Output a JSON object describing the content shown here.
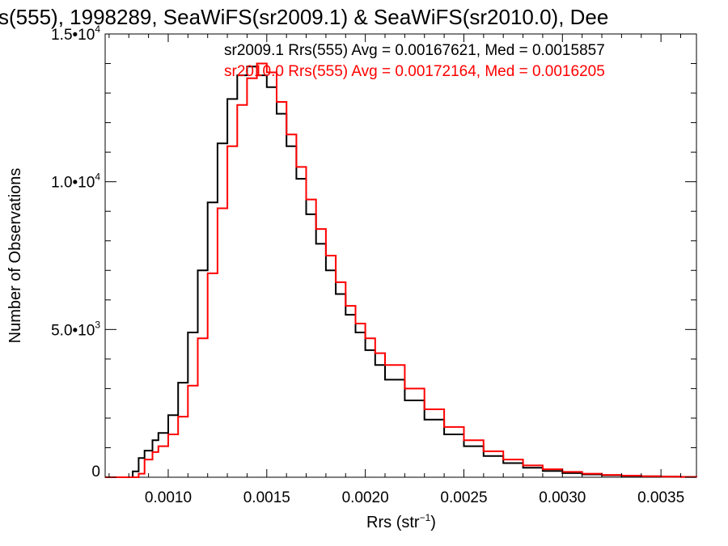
{
  "chart_data": {
    "type": "line",
    "title": "s(555), 1998289, SeaWiFS(sr2009.1) & SeaWiFS(sr2010.0), Dee",
    "xlabel": "Rrs (str",
    "xlabel_sup": "−1",
    "xlabel_close": ")",
    "ylabel": "Number of Observations",
    "xlim": [
      0.00068,
      0.00368
    ],
    "ylim": [
      0,
      15000
    ],
    "x_ticks": [
      {
        "value": 0.001,
        "label": "0.0010"
      },
      {
        "value": 0.0015,
        "label": "0.0015"
      },
      {
        "value": 0.002,
        "label": "0.0020"
      },
      {
        "value": 0.0025,
        "label": "0.0025"
      },
      {
        "value": 0.003,
        "label": "0.0030"
      },
      {
        "value": 0.0035,
        "label": "0.0035"
      }
    ],
    "y_ticks": [
      {
        "value": 0,
        "label": "0",
        "sup": ""
      },
      {
        "value": 5000,
        "label": "5.0•10",
        "sup": "3"
      },
      {
        "value": 10000,
        "label": "1.0•10",
        "sup": "4"
      },
      {
        "value": 15000,
        "label": "1.5•10",
        "sup": "4"
      }
    ],
    "grid": false,
    "legend_position": "top-right",
    "series": [
      {
        "name": "sr2009.1",
        "label": "sr2009.1 Rrs(555) Avg = 0.00167621, Med = 0.0015857",
        "color": "#000000",
        "x": [
          0.00068,
          0.0008,
          0.00082,
          0.00085,
          0.00088,
          0.00092,
          0.00095,
          0.001,
          0.00105,
          0.0011,
          0.00115,
          0.0012,
          0.00125,
          0.0013,
          0.00135,
          0.0014,
          0.00145,
          0.0015,
          0.00155,
          0.0016,
          0.00165,
          0.0017,
          0.00175,
          0.0018,
          0.00185,
          0.0019,
          0.00195,
          0.002,
          0.00205,
          0.0021,
          0.0022,
          0.0023,
          0.0024,
          0.0025,
          0.0026,
          0.0027,
          0.0028,
          0.0029,
          0.003,
          0.0031,
          0.0032,
          0.0033,
          0.0034,
          0.0035,
          0.0036,
          0.00368
        ],
        "y": [
          0,
          0,
          200,
          650,
          900,
          1250,
          1500,
          2100,
          3200,
          4900,
          7000,
          9300,
          11300,
          12800,
          13600,
          13900,
          13600,
          13200,
          12300,
          11200,
          10100,
          8900,
          7900,
          7000,
          6200,
          5500,
          4900,
          4300,
          3800,
          3300,
          2600,
          1950,
          1450,
          1050,
          720,
          480,
          320,
          210,
          140,
          95,
          65,
          45,
          30,
          20,
          10,
          5
        ]
      },
      {
        "name": "sr2010.0",
        "label": "sr2010.0 Rrs(555) Avg = 0.00172164, Med = 0.0016205",
        "color": "#ff0000",
        "x": [
          0.00068,
          0.00082,
          0.00085,
          0.00088,
          0.00092,
          0.00095,
          0.001,
          0.00105,
          0.0011,
          0.00115,
          0.0012,
          0.00125,
          0.0013,
          0.00135,
          0.0014,
          0.00145,
          0.0015,
          0.00155,
          0.0016,
          0.00165,
          0.0017,
          0.00175,
          0.0018,
          0.00185,
          0.0019,
          0.00195,
          0.002,
          0.00205,
          0.0021,
          0.0022,
          0.0023,
          0.0024,
          0.0025,
          0.0026,
          0.0027,
          0.0028,
          0.0029,
          0.003,
          0.0031,
          0.0032,
          0.0033,
          0.0034,
          0.0035,
          0.0036,
          0.00368
        ],
        "y": [
          0,
          0,
          120,
          600,
          850,
          1050,
          1450,
          2050,
          3100,
          4700,
          6900,
          9100,
          11200,
          12600,
          13500,
          14000,
          13700,
          12700,
          11600,
          10500,
          9400,
          8400,
          7500,
          6600,
          5800,
          5200,
          4700,
          4200,
          3800,
          3000,
          2300,
          1700,
          1250,
          880,
          600,
          400,
          270,
          180,
          120,
          80,
          55,
          35,
          22,
          12,
          5
        ]
      }
    ]
  }
}
